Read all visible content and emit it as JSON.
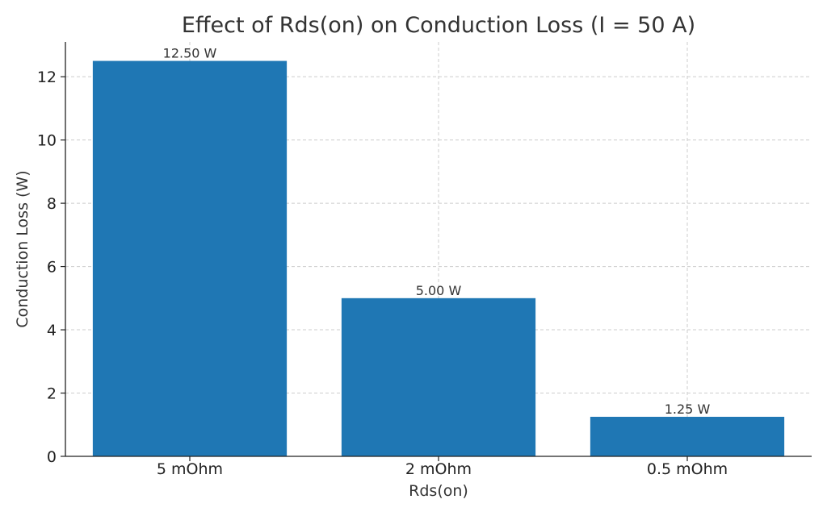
{
  "chart_data": {
    "type": "bar",
    "title": "Effect of Rds(on) on Conduction Loss (I = 50 A)",
    "xlabel": "Rds(on)",
    "ylabel": "Conduction Loss (W)",
    "categories": [
      "5 mOhm",
      "2 mOhm",
      "0.5 mOhm"
    ],
    "values": [
      12.5,
      5.0,
      1.25
    ],
    "data_labels": [
      "12.50 W",
      "5.00 W",
      "1.25 W"
    ],
    "yticks": [
      0,
      2,
      4,
      6,
      8,
      10,
      12
    ],
    "ylim": [
      0,
      13.1
    ],
    "grid": true,
    "bar_color": "#1f77b4"
  }
}
